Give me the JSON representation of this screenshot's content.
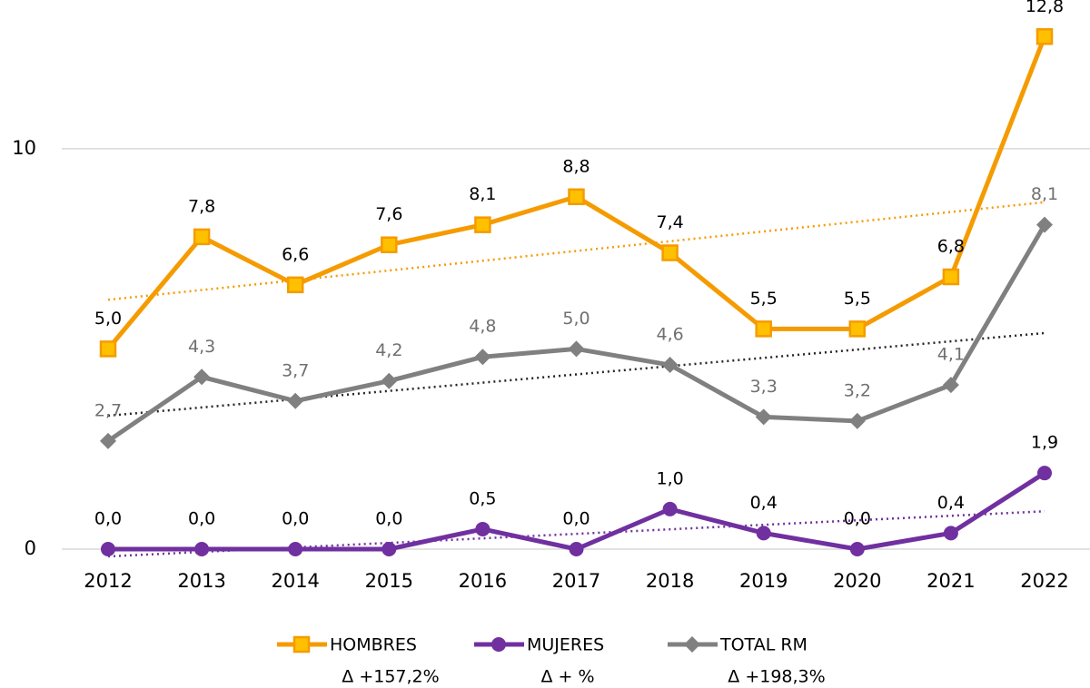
{
  "chart_data": {
    "type": "line",
    "categories": [
      "2012",
      "2013",
      "2014",
      "2015",
      "2016",
      "2017",
      "2018",
      "2019",
      "2020",
      "2021",
      "2022"
    ],
    "ylim": [
      0,
      13.6
    ],
    "yticks": [
      0,
      10
    ],
    "grid": true,
    "trendline": true,
    "legend": "bottom",
    "series": [
      {
        "name": "HOMBRES",
        "color": "#f59b00",
        "marker": "square",
        "marker_fill": "#ffc000",
        "trend_color": "#f59b00",
        "label_color": "#000000",
        "change": "Δ +157,2%",
        "values": [
          5.0,
          7.8,
          6.6,
          7.6,
          8.1,
          8.8,
          7.4,
          5.5,
          5.5,
          6.8,
          12.8
        ],
        "value_labels": [
          "5,0",
          "7,8",
          "6,6",
          "7,6",
          "8,1",
          "8,8",
          "7,4",
          "5,5",
          "5,5",
          "6,8",
          "12,8"
        ]
      },
      {
        "name": "MUJERES",
        "color": "#7030a0",
        "marker": "circle",
        "marker_fill": "#7030a0",
        "trend_color": "#7030a0",
        "label_color": "#000000",
        "change": "Δ + %",
        "values": [
          0.0,
          0.0,
          0.0,
          0.0,
          0.5,
          0.0,
          1.0,
          0.4,
          0.0,
          0.4,
          1.9
        ],
        "value_labels": [
          "0,0",
          "0,0",
          "0,0",
          "0,0",
          "0,5",
          "0,0",
          "1,0",
          "0,4",
          "0,0",
          "0,4",
          "1,9"
        ]
      },
      {
        "name": "TOTAL RM",
        "color": "#808080",
        "marker": "diamond",
        "marker_fill": "#808080",
        "trend_color": "#262626",
        "label_color": "#707070",
        "change": "Δ +198,3%",
        "values": [
          2.7,
          4.3,
          3.7,
          4.2,
          4.8,
          5.0,
          4.6,
          3.3,
          3.2,
          4.1,
          8.1
        ],
        "value_labels": [
          "2,7",
          "4,3",
          "3,7",
          "4,2",
          "4,8",
          "5,0",
          "4,6",
          "3,3",
          "3,2",
          "4,1",
          "8,1"
        ]
      }
    ]
  }
}
